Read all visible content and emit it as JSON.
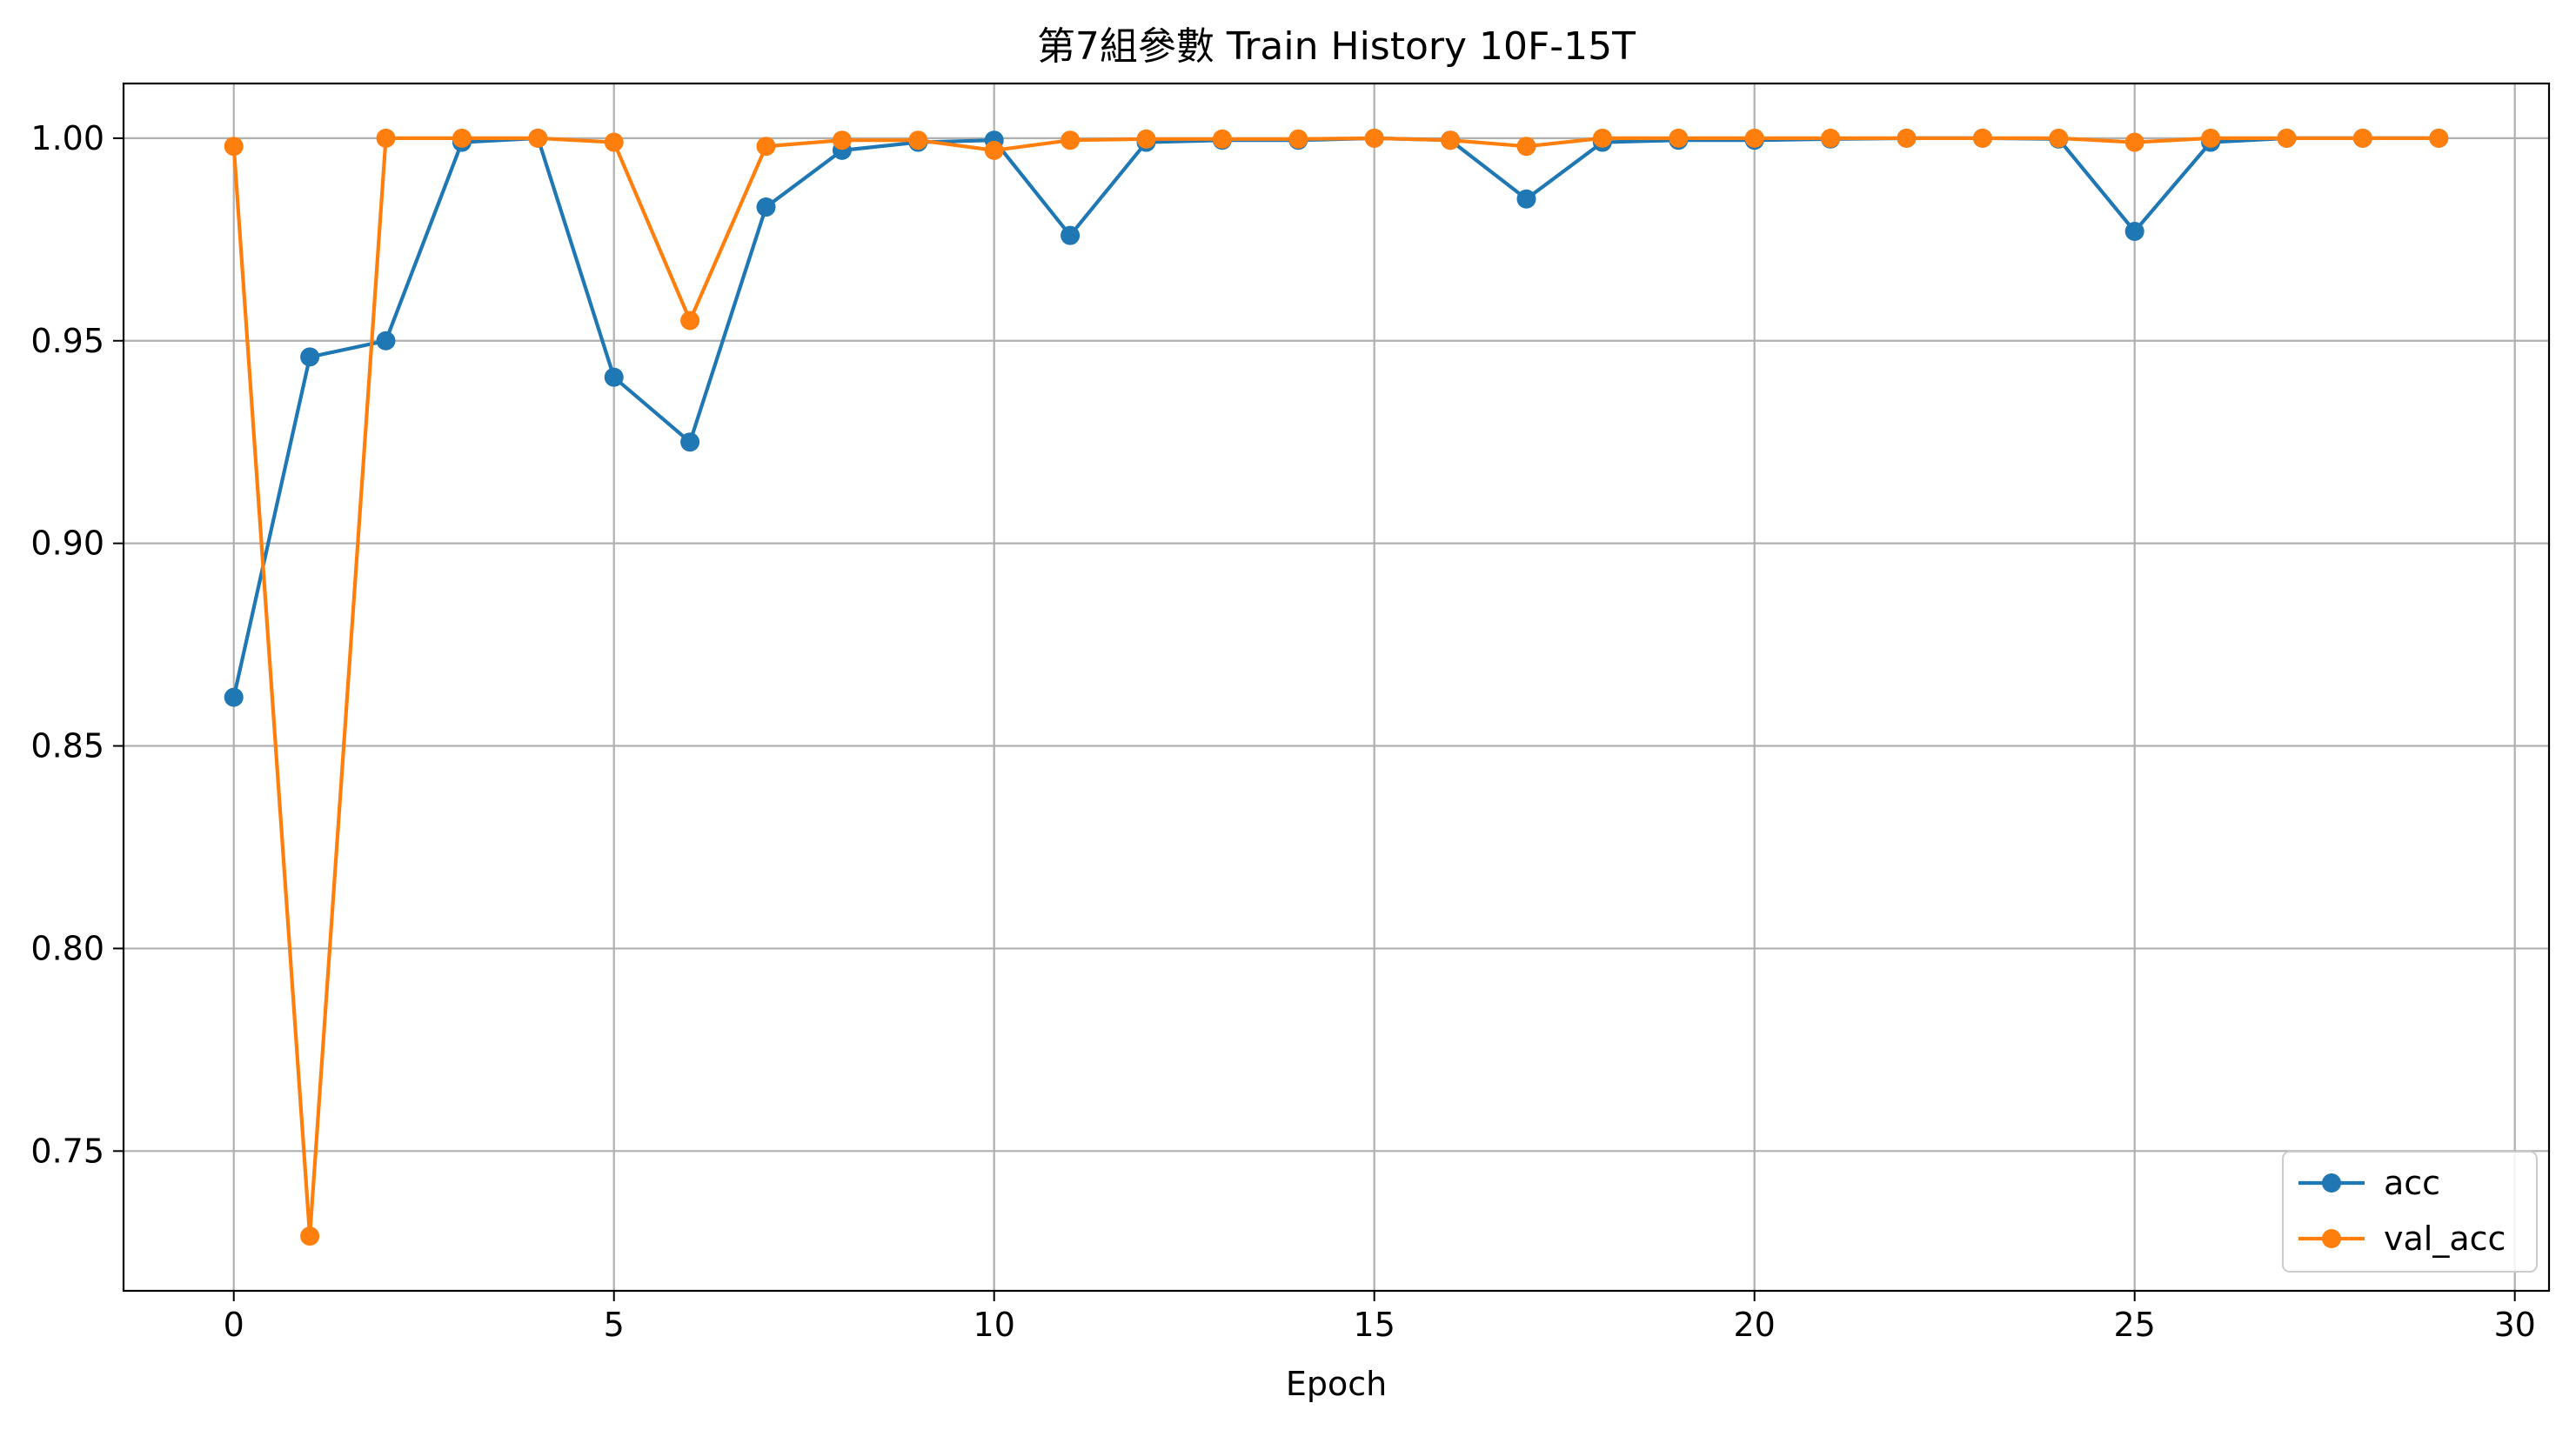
{
  "chart_data": {
    "type": "line",
    "title": "第7組參數 Train History 10F-15T",
    "xlabel": "Epoch",
    "ylabel": "",
    "xlim": [
      -1.45,
      30.45
    ],
    "ylim": [
      0.7155,
      1.0135
    ],
    "xticks": [
      0,
      5,
      10,
      15,
      20,
      25,
      30
    ],
    "yticks": [
      0.75,
      0.8,
      0.85,
      0.9,
      0.95,
      1.0
    ],
    "ytick_labels": [
      "0.75",
      "0.80",
      "0.85",
      "0.90",
      "0.95",
      "1.00"
    ],
    "grid": true,
    "legend_position": "lower-right",
    "x": [
      0,
      1,
      2,
      3,
      4,
      5,
      6,
      7,
      8,
      9,
      10,
      11,
      12,
      13,
      14,
      15,
      16,
      17,
      18,
      19,
      20,
      21,
      22,
      23,
      24,
      25,
      26,
      27,
      28,
      29
    ],
    "series": [
      {
        "name": "acc",
        "color": "#1f77b4",
        "values": [
          0.862,
          0.946,
          0.95,
          0.999,
          1.0,
          0.941,
          0.925,
          0.983,
          0.997,
          0.999,
          0.9995,
          0.976,
          0.999,
          0.9995,
          0.9995,
          1.0,
          0.9995,
          0.985,
          0.999,
          0.9995,
          0.9995,
          0.9998,
          1.0,
          1.0,
          0.9998,
          0.977,
          0.999,
          1.0,
          1.0,
          1.0
        ]
      },
      {
        "name": "val_acc",
        "color": "#ff7f0e",
        "values": [
          0.998,
          0.729,
          1.0,
          1.0,
          1.0,
          0.999,
          0.955,
          0.998,
          0.9995,
          0.9995,
          0.997,
          0.9995,
          0.9998,
          0.9998,
          0.9998,
          1.0,
          0.9995,
          0.998,
          1.0,
          1.0,
          1.0,
          1.0,
          1.0,
          1.0,
          1.0,
          0.999,
          1.0,
          1.0,
          1.0,
          1.0
        ]
      }
    ]
  }
}
